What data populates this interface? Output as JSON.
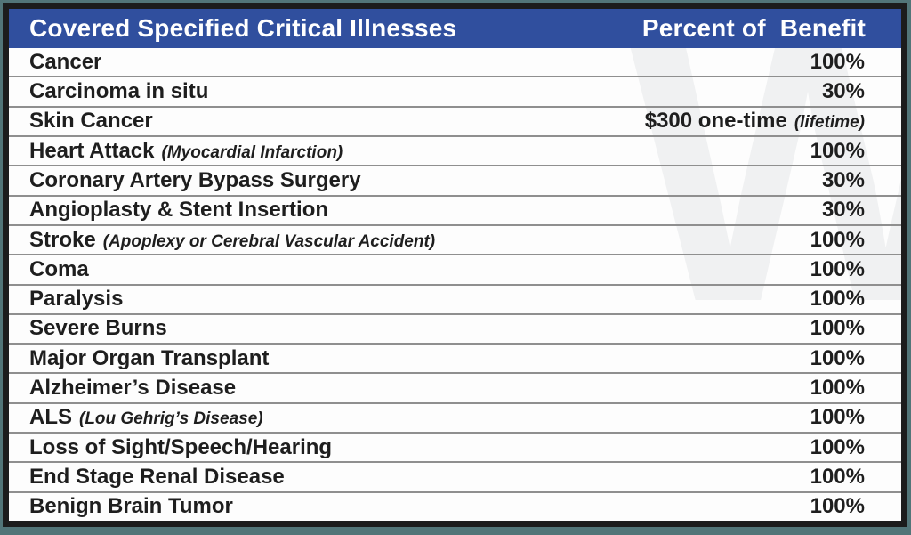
{
  "page": {
    "background_color": "#527578"
  },
  "table": {
    "border_color": "#1c1c1c",
    "separator_color": "#8f8f8f",
    "watermark": "W",
    "watermark_color": "#f0f1f2",
    "header": {
      "bg_color": "#304f9e",
      "text_color": "#ffffff",
      "col_illness": "Covered Specified Critical Illnesses",
      "col_benefit": "Percent of  Benefit"
    },
    "rows": [
      {
        "name": "Cancer",
        "note": "",
        "value": "100%",
        "value_note": ""
      },
      {
        "name": "Carcinoma in situ",
        "note": "",
        "value": "30%",
        "value_note": ""
      },
      {
        "name": "Skin Cancer",
        "note": "",
        "value": "$300 one-time",
        "value_note": "(lifetime)"
      },
      {
        "name": "Heart Attack",
        "note": "(Myocardial Infarction)",
        "value": "100%",
        "value_note": ""
      },
      {
        "name": "Coronary Artery Bypass Surgery",
        "note": "",
        "value": "30%",
        "value_note": ""
      },
      {
        "name": "Angioplasty & Stent Insertion",
        "note": "",
        "value": "30%",
        "value_note": ""
      },
      {
        "name": "Stroke",
        "note": "(Apoplexy or Cerebral Vascular Accident)",
        "value": "100%",
        "value_note": ""
      },
      {
        "name": "Coma",
        "note": "",
        "value": "100%",
        "value_note": ""
      },
      {
        "name": "Paralysis",
        "note": "",
        "value": "100%",
        "value_note": ""
      },
      {
        "name": "Severe Burns",
        "note": "",
        "value": "100%",
        "value_note": ""
      },
      {
        "name": "Major Organ Transplant",
        "note": "",
        "value": "100%",
        "value_note": ""
      },
      {
        "name": "Alzheimer’s Disease",
        "note": "",
        "value": "100%",
        "value_note": ""
      },
      {
        "name": "ALS",
        "note": "(Lou Gehrig’s Disease)",
        "value": "100%",
        "value_note": ""
      },
      {
        "name": "Loss of Sight/Speech/Hearing",
        "note": "",
        "value": "100%",
        "value_note": ""
      },
      {
        "name": "End Stage Renal Disease",
        "note": "",
        "value": "100%",
        "value_note": ""
      },
      {
        "name": "Benign Brain Tumor",
        "note": "",
        "value": "100%",
        "value_note": ""
      }
    ]
  }
}
